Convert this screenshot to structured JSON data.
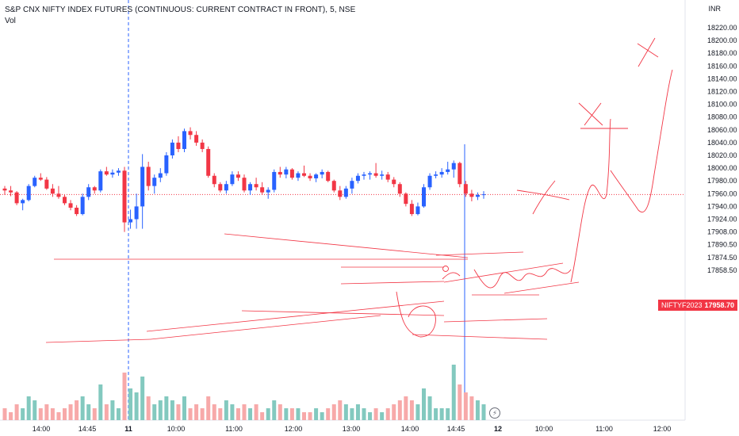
{
  "header": {
    "title": "S&P CNX NIFTY INDEX FUTURES (CONTINUOUS: CURRENT CONTRACT IN FRONT), 5, NSE",
    "volume_label": "Vol",
    "currency": "INR"
  },
  "price_tag": {
    "symbol": "NIFTYF2023",
    "value": "17958.70"
  },
  "colors": {
    "up": "#2962ff",
    "down": "#f23645",
    "vol_up": "#83c9bf",
    "vol_down": "#f7a9a9",
    "drawing": "#f23645",
    "crosshair": "#2962ff"
  },
  "chart_data": {
    "type": "candlestick",
    "y_axis": {
      "ticks": [
        18220,
        18200,
        18180,
        18160,
        18140,
        18120,
        18100,
        18080,
        18060,
        18040,
        18020,
        18000,
        17980,
        17960,
        17940,
        17924,
        17908,
        17890.5,
        17874.5,
        17858.5
      ],
      "tick_labels": [
        "18220.00",
        "18200.00",
        "18180.00",
        "18160.00",
        "18140.00",
        "18120.00",
        "18100.00",
        "18080.00",
        "18060.00",
        "18040.00",
        "18020.00",
        "18000.00",
        "17980.00",
        "17960.00",
        "17940.00",
        "17924.00",
        "17908.00",
        "17890.50",
        "17874.50",
        "17858.50"
      ]
    },
    "x_axis": {
      "tick_labels": [
        "14:00",
        "14:45",
        "11",
        "10:00",
        "11:00",
        "12:00",
        "13:00",
        "14:00",
        "14:45",
        "12",
        "10:00",
        "11:00",
        "12:00"
      ],
      "bold_labels": [
        "11",
        "12"
      ]
    },
    "last_price": 17958.7,
    "candles": [
      [
        17968,
        17972,
        17958,
        17965,
        3
      ],
      [
        17965,
        17972,
        17956,
        17962,
        2
      ],
      [
        17962,
        17964,
        17942,
        17945,
        4
      ],
      [
        17945,
        17952,
        17934,
        17950,
        3
      ],
      [
        17950,
        17975,
        17948,
        17972,
        6
      ],
      [
        17972,
        17988,
        17970,
        17985,
        5
      ],
      [
        17985,
        17992,
        17980,
        17982,
        3
      ],
      [
        17982,
        17986,
        17966,
        17968,
        4
      ],
      [
        17968,
        17975,
        17955,
        17960,
        3
      ],
      [
        17960,
        17972,
        17952,
        17955,
        2
      ],
      [
        17955,
        17958,
        17942,
        17945,
        3
      ],
      [
        17945,
        17950,
        17934,
        17938,
        4
      ],
      [
        17938,
        17942,
        17925,
        17928,
        5
      ],
      [
        17928,
        17960,
        17926,
        17955,
        6
      ],
      [
        17955,
        17975,
        17950,
        17970,
        4
      ],
      [
        17970,
        17972,
        17960,
        17965,
        3
      ],
      [
        17965,
        17998,
        17962,
        17995,
        9
      ],
      [
        17995,
        18002,
        17988,
        17990,
        4
      ],
      [
        17990,
        17998,
        17985,
        17993,
        5
      ],
      [
        17993,
        18000,
        17988,
        17996,
        3
      ],
      [
        17996,
        18002,
        17900,
        17915,
        12
      ],
      [
        17915,
        17935,
        17905,
        17920,
        8
      ],
      [
        17920,
        17960,
        17905,
        17940,
        7
      ],
      [
        17940,
        18022,
        17905,
        18002,
        11
      ],
      [
        18002,
        18010,
        17965,
        17972,
        6
      ],
      [
        17972,
        17990,
        17960,
        17985,
        4
      ],
      [
        17985,
        18000,
        17978,
        17992,
        5
      ],
      [
        17992,
        18025,
        17988,
        18020,
        6
      ],
      [
        18020,
        18045,
        18015,
        18040,
        5
      ],
      [
        18040,
        18050,
        18025,
        18030,
        4
      ],
      [
        18030,
        18062,
        18025,
        18058,
        6
      ],
      [
        18058,
        18064,
        18045,
        18052,
        3
      ],
      [
        18052,
        18058,
        18035,
        18040,
        4
      ],
      [
        18040,
        18045,
        18025,
        18030,
        3
      ],
      [
        18030,
        18034,
        17985,
        17988,
        6
      ],
      [
        17988,
        17992,
        17970,
        17975,
        4
      ],
      [
        17975,
        17978,
        17962,
        17965,
        3
      ],
      [
        17965,
        17980,
        17960,
        17975,
        5
      ],
      [
        17975,
        17995,
        17972,
        17990,
        4
      ],
      [
        17990,
        17995,
        17980,
        17985,
        3
      ],
      [
        17985,
        17990,
        17962,
        17965,
        4
      ],
      [
        17965,
        17978,
        17958,
        17975,
        3
      ],
      [
        17975,
        17985,
        17965,
        17970,
        4
      ],
      [
        17970,
        17978,
        17958,
        17962,
        2
      ],
      [
        17962,
        17970,
        17952,
        17966,
        3
      ],
      [
        17966,
        17998,
        17962,
        17994,
        5
      ],
      [
        17994,
        18002,
        17985,
        17990,
        4
      ],
      [
        17990,
        18002,
        17984,
        17998,
        3
      ],
      [
        17998,
        18000,
        17982,
        17985,
        3
      ],
      [
        17985,
        17995,
        17980,
        17992,
        3
      ],
      [
        17992,
        18004,
        17986,
        17988,
        2
      ],
      [
        17988,
        17992,
        17980,
        17984,
        2
      ],
      [
        17984,
        17992,
        17978,
        17990,
        3
      ],
      [
        17990,
        17998,
        17984,
        17994,
        2
      ],
      [
        17994,
        17996,
        17978,
        17980,
        3
      ],
      [
        17980,
        17982,
        17962,
        17965,
        4
      ],
      [
        17965,
        17972,
        17950,
        17955,
        5
      ],
      [
        17955,
        17972,
        17952,
        17968,
        4
      ],
      [
        17968,
        17985,
        17960,
        17980,
        3
      ],
      [
        17980,
        17992,
        17976,
        17988,
        4
      ],
      [
        17988,
        17994,
        17982,
        17990,
        3
      ],
      [
        17990,
        17995,
        17982,
        17992,
        2
      ],
      [
        17992,
        18008,
        17985,
        17988,
        3
      ],
      [
        17988,
        17996,
        17982,
        17990,
        2
      ],
      [
        17990,
        17994,
        17978,
        17982,
        3
      ],
      [
        17982,
        17986,
        17970,
        17975,
        4
      ],
      [
        17975,
        17978,
        17955,
        17960,
        5
      ],
      [
        17960,
        17962,
        17940,
        17944,
        6
      ],
      [
        17944,
        17950,
        17925,
        17928,
        5
      ],
      [
        17928,
        17946,
        17926,
        17940,
        4
      ],
      [
        17940,
        17975,
        17938,
        17970,
        8
      ],
      [
        17970,
        17992,
        17966,
        17988,
        6
      ],
      [
        17988,
        17995,
        17984,
        17990,
        3
      ],
      [
        17990,
        18000,
        17985,
        17994,
        3
      ],
      [
        17994,
        18010,
        17990,
        17998,
        3
      ],
      [
        17998,
        18012,
        17985,
        18008,
        14
      ],
      [
        18008,
        18010,
        17970,
        17975,
        9
      ],
      [
        17975,
        17980,
        17955,
        17960,
        7
      ],
      [
        17960,
        17966,
        17948,
        17955,
        6
      ],
      [
        17955,
        17962,
        17950,
        17958,
        5
      ],
      [
        17958,
        17964,
        17952,
        17959,
        4
      ]
    ]
  }
}
